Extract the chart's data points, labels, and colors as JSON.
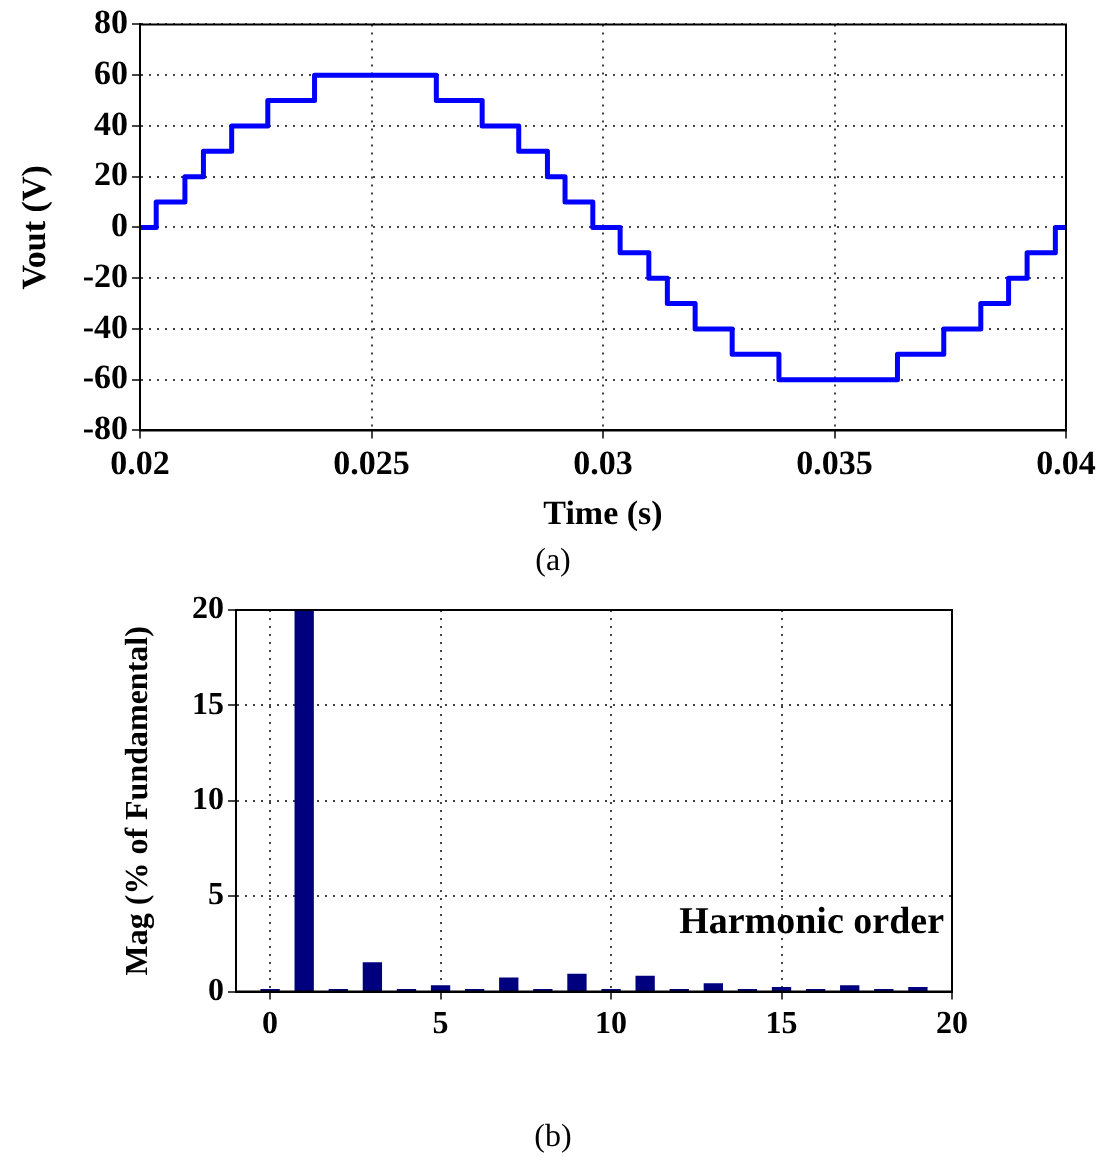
{
  "chart_data": [
    {
      "type": "step",
      "xlabel": "Time (s)",
      "ylabel": "Vout (V)",
      "annotations": [
        "(a)"
      ],
      "x": [
        0.02,
        0.02035,
        0.02097,
        0.02137,
        0.02198,
        0.02276,
        0.02377,
        0.0264,
        0.02739,
        0.02818,
        0.0288,
        0.02918,
        0.02978,
        0.03037,
        0.03099,
        0.03139,
        0.03199,
        0.03279,
        0.0338,
        0.03636,
        0.03736,
        0.03816,
        0.03876,
        0.03916,
        0.03977,
        0.04
      ],
      "series": [
        {
          "color": "#0000ff",
          "values": [
            0,
            10,
            20,
            30,
            40,
            50,
            60,
            50,
            40,
            30,
            20,
            10,
            0,
            -10,
            -20,
            -30,
            -40,
            -50,
            -60,
            -50,
            -40,
            -30,
            -20,
            -10,
            0,
            0
          ]
        }
      ],
      "xlim": [
        0.02,
        0.04
      ],
      "xticks": [
        0.02,
        0.025,
        0.03,
        0.035,
        0.04
      ],
      "ylim": [
        -80,
        80
      ],
      "yticks": [
        -80,
        -60,
        -40,
        -20,
        0,
        20,
        40,
        60,
        80
      ],
      "grid": true,
      "legend": false,
      "marker": "none"
    },
    {
      "type": "bar",
      "xlabel": "Harmonic order",
      "ylabel": "Mag (% of Fundamental)",
      "annotations": [
        "(b)"
      ],
      "x": [
        0,
        1,
        2,
        3,
        4,
        5,
        6,
        7,
        8,
        9,
        10,
        11,
        12,
        13,
        14,
        15,
        16,
        17,
        18,
        19
      ],
      "series": [
        {
          "color": "#00007f",
          "values": [
            0.1,
            20,
            0.1,
            1.5,
            0.1,
            0.3,
            0.1,
            0.7,
            0.1,
            0.9,
            0.1,
            0.8,
            0.1,
            0.4,
            0.1,
            0.2,
            0.1,
            0.3,
            0.1,
            0.2
          ]
        }
      ],
      "xlim": [
        -1,
        20
      ],
      "xticks": [
        0,
        5,
        10,
        15,
        20
      ],
      "ylim": [
        0,
        20
      ],
      "yticks": [
        0,
        5,
        10,
        15,
        20
      ],
      "grid": true,
      "legend": false
    }
  ]
}
